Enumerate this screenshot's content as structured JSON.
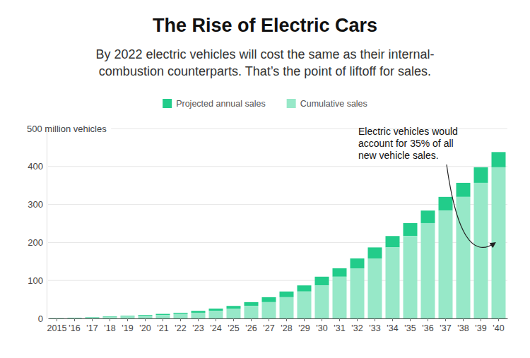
{
  "chart_data": {
    "type": "bar",
    "title": "The Rise of Electric Cars",
    "subtitle": [
      "By 2022 electric vehicles will cost the same as their internal-",
      "combustion counterparts. That’s the point of liftoff for sales."
    ],
    "categories": [
      "2015",
      "'16",
      "'17",
      "'18",
      "'19",
      "'20",
      "'21",
      "'22",
      "'23",
      "'24",
      "'25",
      "'26",
      "'27",
      "'28",
      "'29",
      "'30",
      "'31",
      "'32",
      "'33",
      "'34",
      "'35",
      "'36",
      "'37",
      "'38",
      "'39",
      "'40"
    ],
    "series": [
      {
        "name": "Projected annual sales",
        "color": "#22cc8a",
        "values": [
          0.5,
          1,
          1,
          2,
          2,
          2,
          3,
          3,
          5,
          6,
          7,
          10,
          13,
          15,
          16,
          23,
          22,
          26,
          29,
          30,
          34,
          33,
          36,
          37,
          41,
          40
        ]
      },
      {
        "name": "Cumulative sales",
        "color": "#97e8c8",
        "values": [
          0.5,
          1,
          2,
          3,
          5,
          7,
          9,
          12,
          15,
          20,
          26,
          33,
          43,
          56,
          71,
          87,
          110,
          132,
          158,
          187,
          217,
          251,
          284,
          320,
          357,
          398
        ]
      }
    ],
    "ylim": [
      0,
      500
    ],
    "yticks": [
      0,
      100,
      200,
      300,
      400,
      {
        "value": 500,
        "label": "500 million vehicles"
      }
    ],
    "stacked": true,
    "grid": true,
    "legend": "top",
    "annotation": [
      "Electric vehicles would",
      "account for 35% of all",
      "new vehicle sales."
    ]
  }
}
